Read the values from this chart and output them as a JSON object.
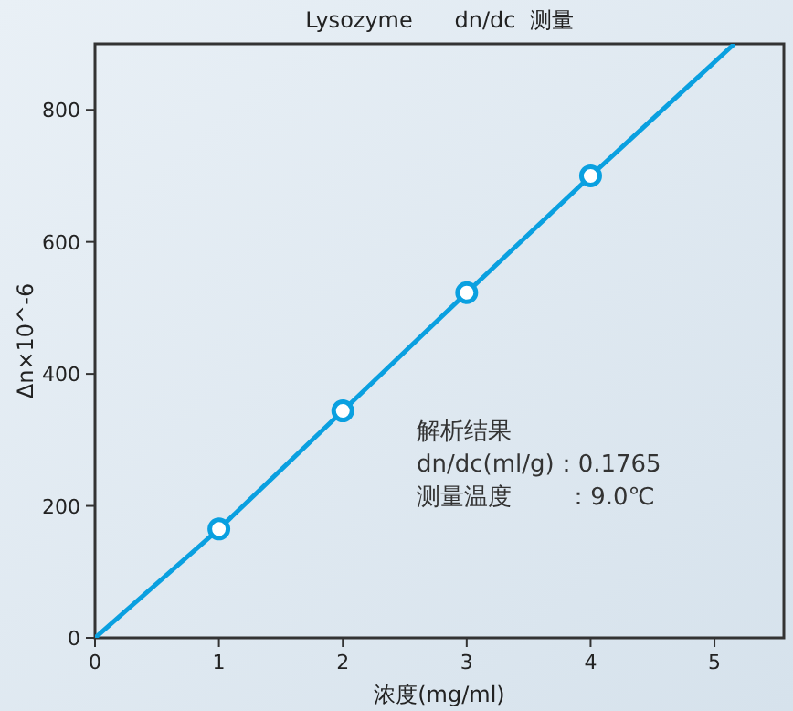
{
  "chart_data": {
    "type": "line",
    "title": "Lysozyme      dn/dc  测量",
    "xlabel": "浓度(mg/ml)",
    "ylabel": "Δn×10^-6",
    "xlim": [
      0,
      5.56
    ],
    "ylim": [
      0,
      900
    ],
    "xticks": [
      0,
      1,
      2,
      3,
      4,
      5
    ],
    "yticks": [
      0,
      200,
      400,
      600,
      800
    ],
    "grid": false,
    "annotations": [
      "解析结果",
      "dn/dc(ml/g)：0.1765",
      "测量温度　　 ：9.0℃"
    ],
    "series": [
      {
        "color": "#0aa0e0",
        "marker": "none",
        "x": [
          0,
          1,
          2,
          3,
          4,
          5.16
        ],
        "values": [
          0,
          165,
          344,
          523,
          700,
          900
        ]
      },
      {
        "type": "scatter",
        "color": "#0aa0e0",
        "marker": "circle",
        "x": [
          1,
          2,
          3,
          4
        ],
        "values": [
          165,
          344,
          523,
          700
        ]
      }
    ]
  }
}
